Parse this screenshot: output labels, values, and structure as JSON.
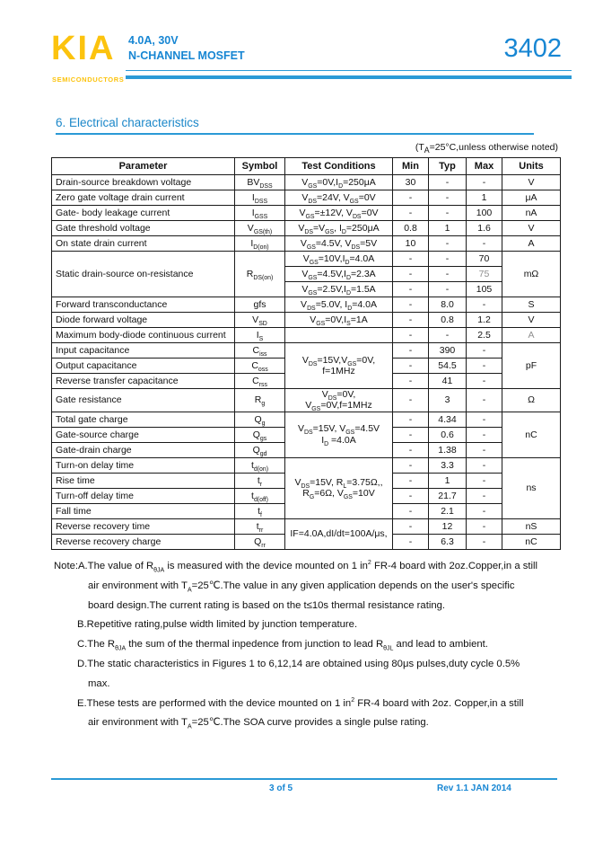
{
  "header": {
    "logo_text": "KIA",
    "logo_subtext": "SEMICONDUCTORS",
    "product_line1": "4.0A,  30V",
    "product_line2": "N-CHANNEL MOSFET",
    "part_number": "3402"
  },
  "section": {
    "title": "6.  Electrical characteristics",
    "note": "(T<sub>A</sub>=25°C,unless otherwise noted)"
  },
  "colors": {
    "brand_yellow": "#FCC30E",
    "brand_blue": "#1786D3",
    "rule_blue": "#2B9AD6",
    "muted_value_gray": "#8F8F8F"
  },
  "table": {
    "columns": [
      "Parameter",
      "Symbol",
      "Test Conditions",
      "Min",
      "Typ",
      "Max",
      "Units"
    ],
    "rows": [
      [
        {
          "h": "Drain-source breakdown voltage",
          "c": "left"
        },
        {
          "h": "BV<sub>DSS</sub>"
        },
        {
          "h": "V<sub>GS</sub>=0V,I<sub>D</sub>=250μA"
        },
        {
          "h": "30"
        },
        {
          "h": "-"
        },
        {
          "h": "-"
        },
        {
          "h": "V"
        }
      ],
      [
        {
          "h": "Zero gate voltage drain current",
          "c": "left"
        },
        {
          "h": "I<sub>DSS</sub>"
        },
        {
          "h": "V<sub>DS</sub>=24V, V<sub>GS</sub>=0V"
        },
        {
          "h": "-"
        },
        {
          "h": "-"
        },
        {
          "h": "1"
        },
        {
          "h": "μA"
        }
      ],
      [
        {
          "h": "Gate- body leakage current",
          "c": "left"
        },
        {
          "h": "I<sub>GSS</sub>"
        },
        {
          "h": "V<sub>GS</sub>=±12V, V<sub>DS</sub>=0V"
        },
        {
          "h": "-"
        },
        {
          "h": "-"
        },
        {
          "h": "100"
        },
        {
          "h": "nA"
        }
      ],
      [
        {
          "h": "Gate threshold voltage",
          "c": "left"
        },
        {
          "h": "V<sub>GS(th)</sub>"
        },
        {
          "h": "V<sub>DS</sub>=V<sub>GS</sub>, I<sub>D</sub>=250μA"
        },
        {
          "h": "0.8"
        },
        {
          "h": "1"
        },
        {
          "h": "1.6"
        },
        {
          "h": "V"
        }
      ],
      [
        {
          "h": "On state drain current",
          "c": "left"
        },
        {
          "h": "I<sub>D(on)</sub>"
        },
        {
          "h": "V<sub>GS</sub>=4.5V, V<sub>DS</sub>=5V"
        },
        {
          "h": "10"
        },
        {
          "h": "-"
        },
        {
          "h": "-"
        },
        {
          "h": "A"
        }
      ],
      [
        {
          "h": "Static drain-source on-resistance",
          "c": "left",
          "rs": 3
        },
        {
          "h": "R<sub>DS(on)</sub>",
          "rs": 3
        },
        {
          "h": "V<sub>GS</sub>=10V,I<sub>D</sub>=4.0A"
        },
        {
          "h": "-"
        },
        {
          "h": "-"
        },
        {
          "h": "70"
        },
        {
          "h": "mΩ",
          "rs": 3
        }
      ],
      [
        {
          "h": "V<sub>GS</sub>=4.5V,I<sub>D</sub>=2.3A"
        },
        {
          "h": "-"
        },
        {
          "h": "-"
        },
        {
          "h": "75",
          "c": "gray"
        }
      ],
      [
        {
          "h": "V<sub>GS</sub>=2.5V,I<sub>D</sub>=1.5A"
        },
        {
          "h": "-"
        },
        {
          "h": "-"
        },
        {
          "h": "105"
        }
      ],
      [
        {
          "h": "Forward transconductance",
          "c": "left"
        },
        {
          "h": "gfs"
        },
        {
          "h": "V<sub>DS</sub>=5.0V, I<sub>D</sub>=4.0A"
        },
        {
          "h": "-"
        },
        {
          "h": "8.0"
        },
        {
          "h": "-"
        },
        {
          "h": "S"
        }
      ],
      [
        {
          "h": "Diode forward voltage",
          "c": "left"
        },
        {
          "h": "V<sub>SD</sub>"
        },
        {
          "h": "V<sub>GS</sub>=0V,I<sub>S</sub>=1A"
        },
        {
          "h": "-"
        },
        {
          "h": "0.8"
        },
        {
          "h": "1.2"
        },
        {
          "h": "V"
        }
      ],
      [
        {
          "h": "Maximum body-diode continuous current",
          "c": "left"
        },
        {
          "h": "I<sub>S</sub>"
        },
        {
          "h": ""
        },
        {
          "h": "-"
        },
        {
          "h": "-"
        },
        {
          "h": "2.5"
        },
        {
          "h": "A",
          "c": "gray"
        }
      ],
      [
        {
          "h": "Input capacitance",
          "c": "left"
        },
        {
          "h": "C<sub>iss</sub>"
        },
        {
          "h": "V<sub>DS</sub>=15V,V<sub>GS</sub>=0V,<br>f=1MHz",
          "rs": 3
        },
        {
          "h": "-"
        },
        {
          "h": "390"
        },
        {
          "h": "-"
        },
        {
          "h": "pF",
          "rs": 3
        }
      ],
      [
        {
          "h": "Output capacitance",
          "c": "left"
        },
        {
          "h": "C<sub>oss</sub>"
        },
        {
          "h": "-"
        },
        {
          "h": "54.5"
        },
        {
          "h": "-"
        }
      ],
      [
        {
          "h": "Reverse transfer capacitance",
          "c": "left"
        },
        {
          "h": "C<sub>rss</sub>"
        },
        {
          "h": "-"
        },
        {
          "h": "41"
        },
        {
          "h": "-"
        }
      ],
      [
        {
          "h": "Gate resistance",
          "c": "left"
        },
        {
          "h": "R<sub>g</sub>"
        },
        {
          "h": "V<sub>DS</sub>=0V,<br>V<sub>GS</sub>=0V,f=1MHz"
        },
        {
          "h": "-"
        },
        {
          "h": "3"
        },
        {
          "h": "-"
        },
        {
          "h": "Ω"
        }
      ],
      [
        {
          "h": "Total gate charge",
          "c": "left"
        },
        {
          "h": "Q<sub>g</sub>"
        },
        {
          "h": "V<sub>DS</sub>=15V, V<sub>GS</sub>=4.5V<br>I<sub>D</sub> =4.0A",
          "rs": 3
        },
        {
          "h": "-"
        },
        {
          "h": "4.34"
        },
        {
          "h": "-"
        },
        {
          "h": "nC",
          "rs": 3
        }
      ],
      [
        {
          "h": "Gate-source charge",
          "c": "left"
        },
        {
          "h": "Q<sub>gs</sub>"
        },
        {
          "h": "-"
        },
        {
          "h": "0.6"
        },
        {
          "h": "-"
        }
      ],
      [
        {
          "h": "Gate-drain charge",
          "c": "left"
        },
        {
          "h": "Q<sub>gd</sub>"
        },
        {
          "h": "-"
        },
        {
          "h": "1.38"
        },
        {
          "h": "-"
        }
      ],
      [
        {
          "h": "Turn-on delay time",
          "c": "left"
        },
        {
          "h": "t<sub>d(on)</sub>"
        },
        {
          "h": "V<sub>DS</sub>=15V, R<sub>L</sub>=3.75Ω,,<br>R<sub>G</sub>=6Ω, V<sub>GS</sub>=10V",
          "rs": 4
        },
        {
          "h": "-"
        },
        {
          "h": "3.3"
        },
        {
          "h": "-"
        },
        {
          "h": "ns",
          "rs": 4
        }
      ],
      [
        {
          "h": "Rise time",
          "c": "left"
        },
        {
          "h": "t<sub>r</sub>"
        },
        {
          "h": "-"
        },
        {
          "h": "1"
        },
        {
          "h": "-"
        }
      ],
      [
        {
          "h": "Turn-off delay time",
          "c": "left"
        },
        {
          "h": "t<sub>d(off)</sub>"
        },
        {
          "h": "-"
        },
        {
          "h": "21.7"
        },
        {
          "h": "-"
        }
      ],
      [
        {
          "h": "Fall time",
          "c": "left"
        },
        {
          "h": "t<sub>f</sub>"
        },
        {
          "h": "-"
        },
        {
          "h": "2.1"
        },
        {
          "h": "-"
        }
      ],
      [
        {
          "h": "Reverse recovery time",
          "c": "left"
        },
        {
          "h": "t<sub>rr</sub>"
        },
        {
          "h": "IF=4.0A,dI/dt=100A/μs,",
          "rs": 2
        },
        {
          "h": "-"
        },
        {
          "h": "12"
        },
        {
          "h": "-"
        },
        {
          "h": "nS"
        }
      ],
      [
        {
          "h": "Reverse recovery charge",
          "c": "left"
        },
        {
          "h": "Q<sub>rr</sub>"
        },
        {
          "h": "-"
        },
        {
          "h": "6.3"
        },
        {
          "h": "-"
        },
        {
          "h": "nC"
        }
      ]
    ]
  },
  "notes": {
    "lines": [
      {
        "i": 0,
        "h": "Note:A.The value of R<sub>θJA</sub> is measured with the device mounted on 1 in<sup>2</sup> FR-4 board with 2oz.Copper,in a still"
      },
      {
        "i": 2,
        "h": "air environment with T<sub>A</sub>=25℃.The value in any given application depends on the user's specific"
      },
      {
        "i": 2,
        "h": "board design.The current rating is based on the t≤10s thermal resistance rating."
      },
      {
        "i": 1,
        "h": "B.Repetitive rating,pulse width limited by junction temperature."
      },
      {
        "i": 1,
        "h": "C.The R<sub>θJA</sub>  the sum of the thermal inpedence from junction to lead R<sub>θJL</sub> and lead to ambient."
      },
      {
        "i": 1,
        "h": "D.The static characteristics in Figures 1 to 6,12,14 are obtained using 80μs pulses,duty cycle 0.5%"
      },
      {
        "i": 2,
        "h": "max."
      },
      {
        "i": 1,
        "h": "E.These tests are performed with the device mounted on 1 in<sup>2</sup> FR-4 board with 2oz. Copper,in a still"
      },
      {
        "i": 2,
        "h": "air environment with T<sub>A</sub>=25℃.The SOA curve provides a single pulse rating."
      }
    ]
  },
  "footer": {
    "page_number": "3 of 5",
    "revision": "Rev 1.1 JAN 2014"
  }
}
